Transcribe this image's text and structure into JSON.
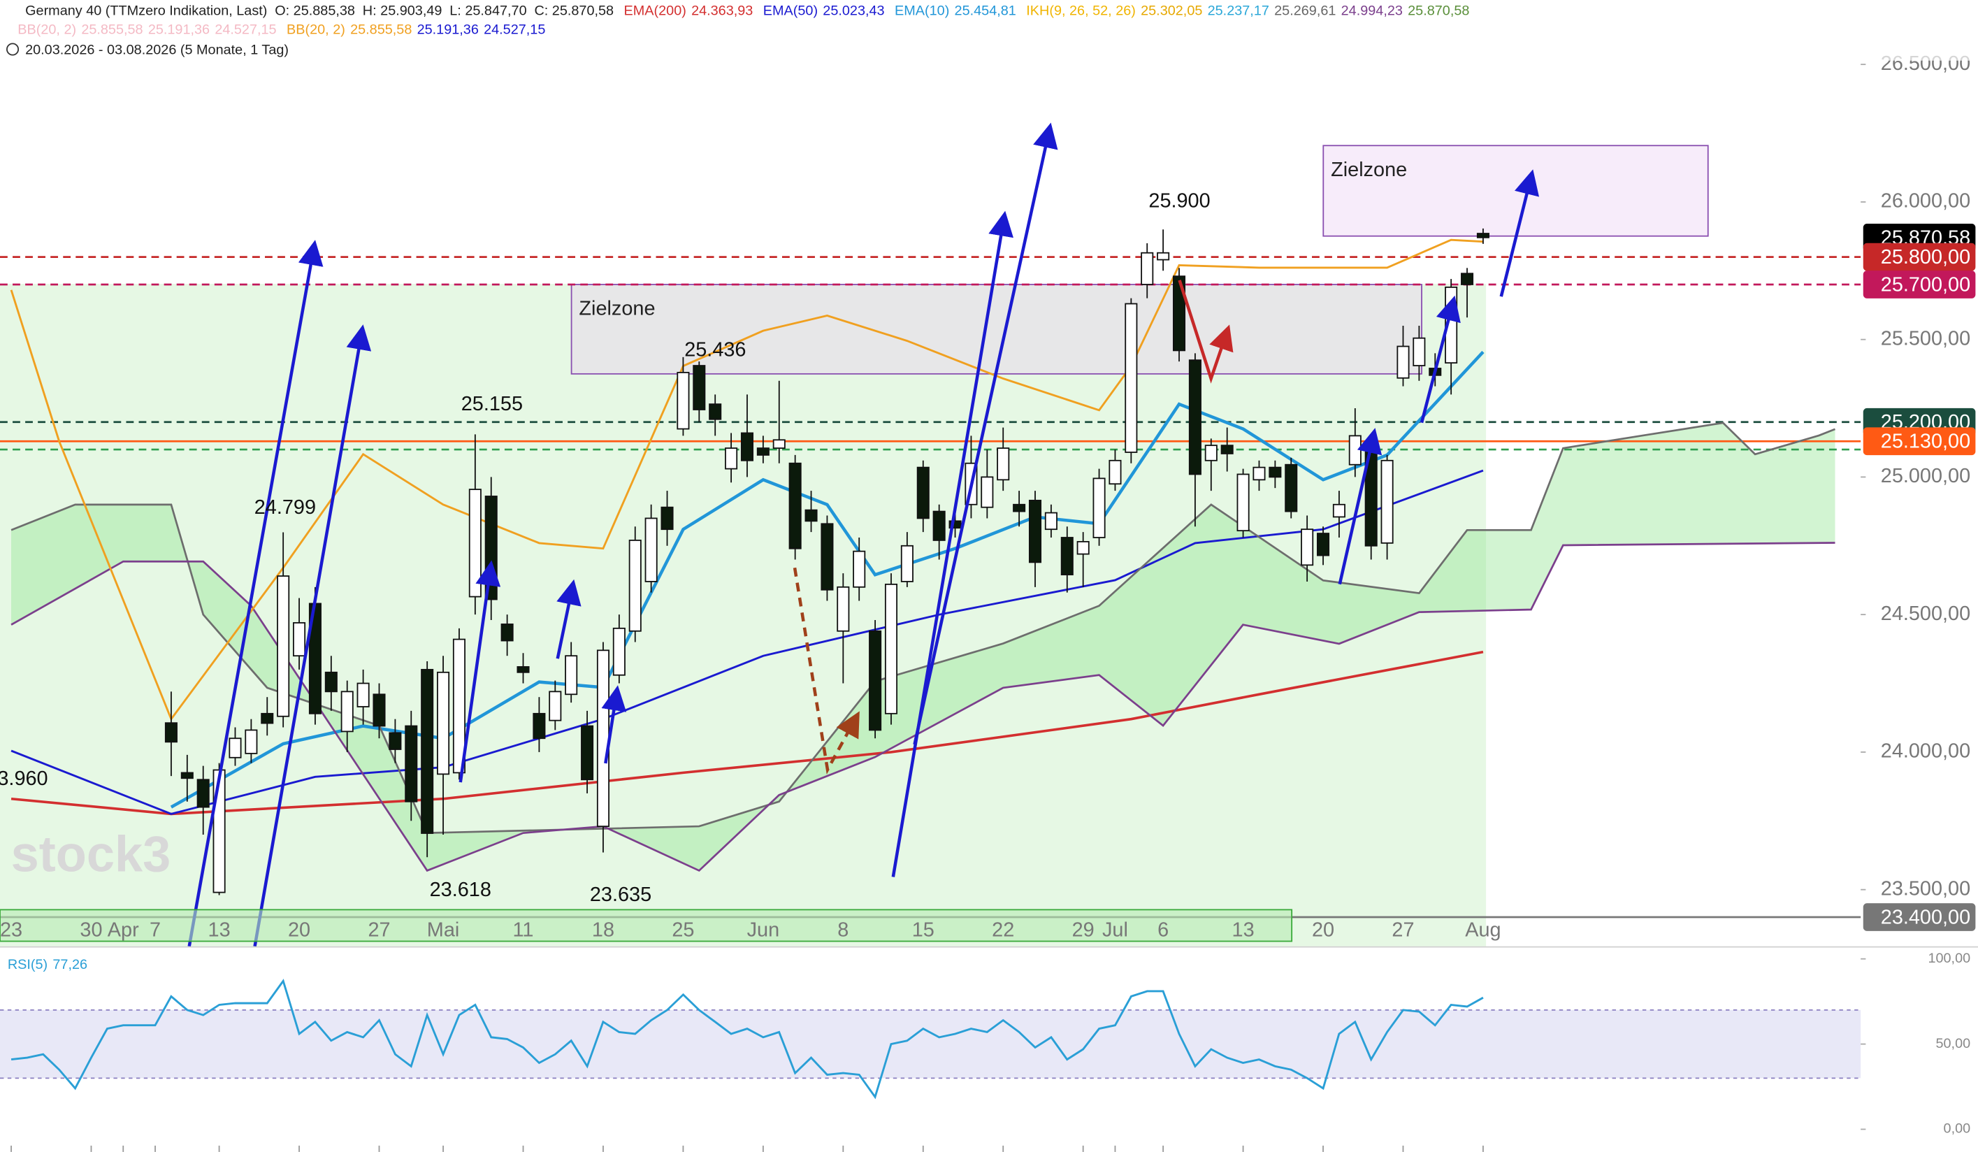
{
  "chart_data": {
    "type": "candlestick",
    "title": "Germany 40 (TTMzero Indikation, Last)",
    "ohlc_labels": [
      "O: 25.885,38",
      "H: 25.903,49",
      "L: 25.847,70",
      "C: 25.870,58"
    ],
    "period": "20.03.2026 - 03.08.2026 (5 Monate, 1 Tag)",
    "watermark": "stock3",
    "xlim": [
      -0.7,
      115.6
    ],
    "ylim": [
      23294,
      26734
    ],
    "yticks": [
      {
        "value": 26500,
        "label": "26.500,00"
      },
      {
        "value": 26000,
        "label": "26.000,00"
      },
      {
        "value": 25500,
        "label": "25.500,00"
      },
      {
        "value": 25000,
        "label": "25.000,00"
      },
      {
        "value": 24500,
        "label": "24.500,00"
      },
      {
        "value": 24000,
        "label": "24.000,00"
      },
      {
        "value": 23500,
        "label": "23.500,00"
      }
    ],
    "categories": [
      "23",
      null,
      null,
      null,
      null,
      "30",
      null,
      "Apr",
      null,
      "7",
      null,
      null,
      null,
      "13",
      null,
      null,
      null,
      null,
      "20",
      null,
      null,
      null,
      null,
      "27",
      null,
      null,
      null,
      "Mai",
      null,
      null,
      null,
      null,
      "11",
      null,
      null,
      null,
      null,
      "18",
      null,
      null,
      null,
      null,
      "25",
      null,
      null,
      null,
      null,
      "Jun",
      null,
      null,
      null,
      null,
      "8",
      null,
      null,
      null,
      null,
      "15",
      null,
      null,
      null,
      null,
      "22",
      null,
      null,
      null,
      null,
      "29",
      null,
      "Jul",
      null,
      null,
      "6",
      null,
      null,
      null,
      null,
      "13",
      null,
      null,
      null,
      null,
      "20",
      null,
      null,
      null,
      null,
      "27",
      null,
      null,
      null,
      null,
      "Aug"
    ],
    "open": [
      null,
      null,
      null,
      null,
      null,
      null,
      null,
      null,
      null,
      null,
      24106,
      23925,
      23900,
      23490,
      23980,
      23995,
      24140,
      24130,
      24350,
      24540,
      24290,
      24075,
      24165,
      24210,
      24070,
      24095,
      24300,
      23920,
      23925,
      24565,
      24930,
      24465,
      24310,
      24140,
      24115,
      24210,
      24095,
      23730,
      24280,
      24440,
      24620,
      24890,
      25175,
      25405,
      25265,
      25030,
      25160,
      25105,
      25105,
      25050,
      24880,
      24830,
      24440,
      24600,
      24440,
      24140,
      24620,
      25035,
      24875,
      24840,
      24900,
      24890,
      24990,
      24900,
      24915,
      24810,
      24780,
      24720,
      24780,
      24975,
      25090,
      25700,
      25790,
      25730,
      25425,
      25060,
      25115,
      24805,
      24990,
      25035,
      25045,
      24680,
      24795,
      24855,
      25045,
      25120,
      24760,
      25360,
      25405,
      25395,
      25415,
      25740,
      25885.38
    ],
    "high": [
      null,
      null,
      null,
      null,
      null,
      null,
      null,
      null,
      null,
      null,
      24220,
      23990,
      23950,
      23960,
      24090,
      24120,
      24200,
      24799,
      24560,
      24600,
      24350,
      24260,
      24300,
      24250,
      24120,
      24150,
      24330,
      24350,
      24450,
      25155,
      25000,
      24500,
      24360,
      24200,
      24260,
      24400,
      24150,
      24400,
      24500,
      24820,
      24900,
      24950,
      25436,
      25420,
      25300,
      25160,
      25300,
      25150,
      25350,
      25080,
      24950,
      24860,
      24650,
      24780,
      24480,
      24650,
      24800,
      25060,
      24900,
      24880,
      25150,
      25100,
      25180,
      24950,
      24950,
      24900,
      24820,
      24800,
      25030,
      25100,
      25650,
      25850,
      25900,
      25760,
      25450,
      25140,
      25180,
      25030,
      25060,
      25060,
      25070,
      24860,
      24820,
      24950,
      25250,
      25140,
      25080,
      25550,
      25550,
      25450,
      25720,
      25760,
      25903.49
    ],
    "low": [
      null,
      null,
      null,
      null,
      null,
      null,
      null,
      null,
      null,
      null,
      23913,
      23820,
      23700,
      23480,
      23950,
      23960,
      24060,
      24090,
      24300,
      24100,
      24150,
      24000,
      24100,
      24050,
      23960,
      23750,
      23618,
      23700,
      23900,
      24500,
      24480,
      24350,
      24250,
      24000,
      24080,
      24180,
      23850,
      23635,
      24250,
      24400,
      24580,
      24750,
      25150,
      25200,
      25150,
      24980,
      25000,
      25050,
      25050,
      24700,
      24800,
      24550,
      24250,
      24550,
      24050,
      24100,
      24600,
      24800,
      24700,
      24780,
      24850,
      24850,
      24950,
      24820,
      24600,
      24780,
      24580,
      24600,
      24750,
      24950,
      25050,
      25650,
      25750,
      25420,
      24820,
      24950,
      25020,
      24780,
      24950,
      24960,
      24850,
      24620,
      24680,
      24780,
      25000,
      24700,
      24700,
      25330,
      25350,
      25330,
      25300,
      25580,
      25847.7
    ],
    "close": [
      null,
      null,
      null,
      null,
      null,
      null,
      null,
      null,
      null,
      null,
      24037,
      23905,
      23800,
      23935,
      24050,
      24080,
      24105,
      24640,
      24470,
      24140,
      24220,
      24220,
      24250,
      24095,
      24010,
      23820,
      23705,
      24290,
      24410,
      24955,
      24555,
      24405,
      24290,
      24050,
      24220,
      24350,
      23900,
      24370,
      24450,
      24770,
      24850,
      24810,
      25380,
      25245,
      25210,
      25105,
      25060,
      25080,
      25135,
      24740,
      24840,
      24590,
      24600,
      24730,
      24080,
      24610,
      24750,
      24850,
      24770,
      24815,
      25050,
      25000,
      25105,
      24875,
      24690,
      24870,
      24645,
      24765,
      24995,
      25060,
      25630,
      25815,
      25815,
      25460,
      25010,
      25115,
      25085,
      25010,
      25035,
      25000,
      24875,
      24810,
      24715,
      24900,
      25150,
      24750,
      25060,
      25475,
      25505,
      25370,
      25690,
      25700,
      25870.58
    ],
    "series": [
      {
        "name": "EMA(200)",
        "color": "#d32f2f",
        "legend_values": [
          "24.363,93"
        ],
        "x": [
          0,
          10,
          27,
          42,
          55,
          70,
          78,
          92
        ],
        "values": [
          23830,
          23775,
          23830,
          23925,
          24000,
          24120,
          24210,
          24363.93
        ]
      },
      {
        "name": "EMA(50)",
        "color": "#1a1ad0",
        "legend_values": [
          "25.023,43"
        ],
        "x": [
          0,
          10,
          19,
          27,
          37,
          47,
          58,
          69,
          74,
          82,
          92
        ],
        "values": [
          24005,
          23775,
          23910,
          23945,
          24120,
          24350,
          24500,
          24625,
          24760,
          24810,
          25023.43
        ]
      },
      {
        "name": "EMA(10)",
        "color": "#2196d8",
        "legend_values": [
          "25.454,81"
        ],
        "x": [
          10,
          17,
          22,
          27,
          33,
          37,
          42,
          47,
          51,
          54,
          59,
          64,
          68,
          73,
          77,
          82,
          86,
          92
        ],
        "values": [
          23800,
          24030,
          24095,
          24050,
          24255,
          24235,
          24810,
          24990,
          24900,
          24645,
          24740,
          24855,
          24830,
          25265,
          25175,
          24990,
          25080,
          25454.81
        ]
      },
      {
        "name": "IKH(9, 26, 52, 26)",
        "color": "#f0b400",
        "legend_values": [
          "25.302,05",
          "25.237,17",
          "25.269,61",
          "24.994,23",
          "25.870,58"
        ],
        "legend_colors": [
          "#e6a800",
          "#2aa7d8",
          "#666666",
          "#7b3f8c",
          "#5a8f3a"
        ],
        "line_colors": [
          "#6d6d6d",
          "#7b3f8c"
        ],
        "cloud_color": "#8fe38f",
        "x_a": [
          0,
          4,
          10,
          12,
          16,
          23,
          26,
          43,
          48,
          54,
          62,
          68,
          75,
          82,
          88,
          91,
          95,
          97,
          102,
          107,
          109,
          113,
          114
        ],
        "span_a": [
          24807,
          24900,
          24900,
          24500,
          24234,
          24096,
          23706,
          23730,
          23820,
          24257,
          24395,
          24532,
          24900,
          24624,
          24578,
          24807,
          24807,
          25105,
          25151,
          25197,
          25083,
          25151,
          25174
        ],
        "x_b": [
          0,
          7,
          12,
          15,
          26,
          32,
          37,
          43,
          48,
          54,
          62,
          68,
          72,
          77,
          83,
          88,
          95,
          97,
          114
        ],
        "span_b": [
          24463,
          24693,
          24693,
          24532,
          23569,
          23706,
          23730,
          23569,
          23844,
          23982,
          24234,
          24280,
          24096,
          24463,
          24394,
          24509,
          24518,
          24752,
          24761
        ]
      },
      {
        "name": "BB(20, 2)",
        "color": "#f4b9c4",
        "legend_values": [
          "25.855,58",
          "25.191,36",
          "24.527,15"
        ]
      },
      {
        "name": "BB(20, 2)",
        "color": "#f0a020",
        "legend_values": [
          "25.855,58",
          "25.191,36",
          "24.527,15"
        ],
        "legend_colors": [
          "#f0a020",
          "#1a1ad0",
          "#1a1ad0"
        ],
        "x": [
          0,
          3,
          10,
          17,
          22,
          27,
          33,
          37,
          42,
          47,
          51,
          56,
          62,
          68,
          70,
          73,
          78,
          86,
          90,
          92
        ],
        "values": [
          25680,
          25130,
          24120,
          24670,
          25083,
          24900,
          24760,
          24740,
          25404,
          25532,
          25587,
          25495,
          25358,
          25243,
          25404,
          25770,
          25761,
          25761,
          25862,
          25855.58
        ]
      }
    ],
    "levels": [
      {
        "value": 25870.58,
        "label": "25.870,58",
        "color": "#000000",
        "line": false
      },
      {
        "value": 25800,
        "label": "25.800,00",
        "color": "#c62828",
        "line": true,
        "dash": true
      },
      {
        "value": 25700,
        "label": "25.700,00",
        "color": "#c2185b",
        "line": true,
        "dash": true
      },
      {
        "value": 25200,
        "label": "25.200,00",
        "color": "#1b4d3e",
        "line": true,
        "dash": true
      },
      {
        "value": 25100,
        "color": "#2e9e4f",
        "line": true,
        "dash": true
      },
      {
        "value": 25130,
        "label": "25.130,00",
        "color": "#ff5a14",
        "line": true
      },
      {
        "value": 23400,
        "label": "23.400,00",
        "color": "#777777",
        "line": true
      }
    ],
    "zones": [
      {
        "label": "Zielzone",
        "top": 25700,
        "bottom": 25375
      },
      {
        "label": "Zielzone",
        "top": 26205,
        "bottom": 25876
      }
    ],
    "annotations": [
      "25.900",
      "25.436",
      "25.155",
      "24.799",
      "23.618",
      "23.635",
      "3.960"
    ],
    "rsi": {
      "name": "RSI(5)",
      "value_label": "77,26",
      "color": "#2a9fd6",
      "ylim": [
        -13.3,
        105.9
      ],
      "bands": [
        30,
        70
      ],
      "yticks": [
        {
          "value": 100,
          "label": "100,00"
        },
        {
          "value": 50,
          "label": "50,00"
        },
        {
          "value": 0,
          "label": "0,00"
        }
      ],
      "values": [
        41,
        42,
        44,
        35,
        24,
        42,
        59,
        61,
        61,
        61,
        78,
        70,
        67,
        73,
        74,
        74,
        74,
        87,
        56,
        63,
        52,
        57,
        54,
        64,
        44,
        37,
        67,
        44,
        67,
        73,
        54,
        53,
        48,
        39,
        44,
        52,
        37,
        63,
        57,
        56,
        64,
        70,
        79,
        70,
        63,
        56,
        59,
        54,
        57,
        33,
        42,
        32,
        33,
        32,
        19,
        50,
        52,
        59,
        54,
        56,
        59,
        57,
        64,
        57,
        48,
        54,
        41,
        47,
        59,
        61,
        78,
        81,
        81,
        56,
        37,
        47,
        42,
        39,
        41,
        37,
        35,
        30,
        24,
        56,
        63,
        41,
        57,
        70,
        69,
        61,
        73,
        72,
        77.26
      ]
    }
  }
}
